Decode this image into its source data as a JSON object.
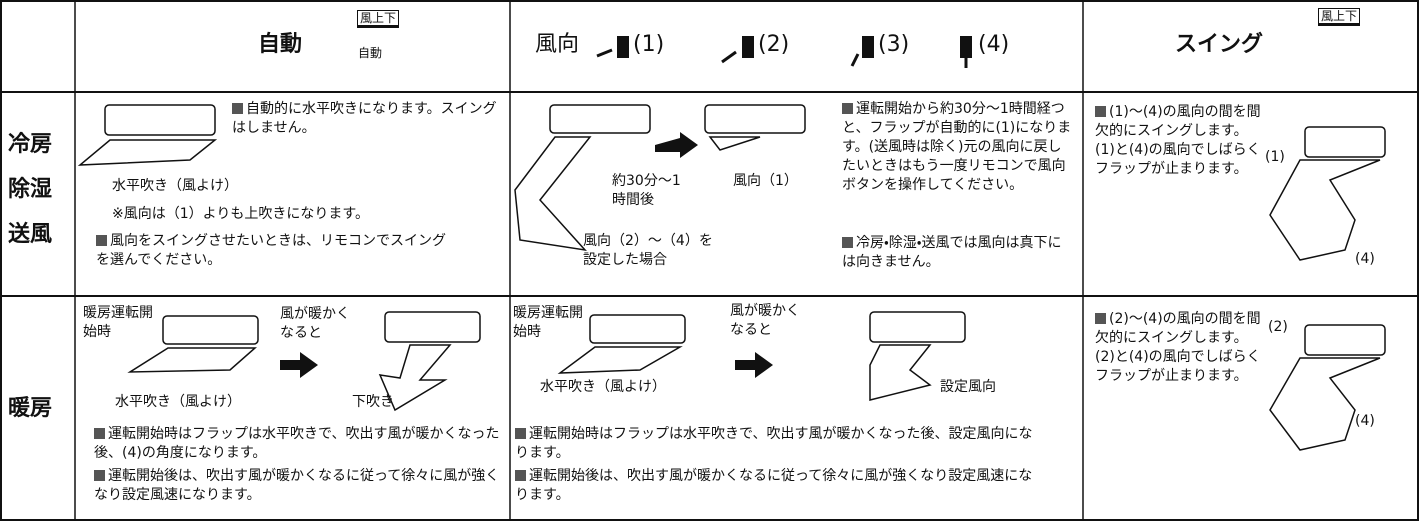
{
  "header": {
    "auto": {
      "title": "自動",
      "icon_label": "風上下",
      "icon_sub": "自動"
    },
    "direction": {
      "title": "風向",
      "positions": [
        "(1)",
        "(2)",
        "(3)",
        "(4)"
      ]
    },
    "swing": {
      "title": "スイング",
      "icon_label": "風上下"
    }
  },
  "rows": [
    {
      "labels": [
        "冷房",
        "除湿",
        "送風"
      ],
      "auto": {
        "notes": [
          "自動的に水平吹きになります。スイングはしません。",
          "風向をスイングさせたいときは、リモコンでスイングを選んでください。"
        ],
        "caption": "水平吹き（風よけ）",
        "remark": "※風向は（1）よりも上吹きになります。"
      },
      "direction": {
        "after": "約30分～1時間後",
        "result": "風向（1）",
        "other": "風向（2）～（4）を設定した場合",
        "notes": [
          "運転開始から約30分～1時間経つと、フラップが自動的に(1)になります。(送風時は除く)元の風向に戻したいときはもう一度リモコンで風向ボタンを操作してください。",
          "冷房・除湿・送風では風向は真下には向きません。"
        ]
      },
      "swing": {
        "note": "(1)～(4)の風向の間を間欠的にスイングします。(1)と(4)の風向でしばらくフラップが止まります。",
        "from": "(1)",
        "to": "(4)"
      }
    },
    {
      "labels": [
        "暖房"
      ],
      "auto": {
        "start": "暖房運転開始時",
        "warm": "風が暖かくなると",
        "caption": "水平吹き（風よけ）",
        "down": "下吹き",
        "notes": [
          "運転開始時はフラップは水平吹きで、吹出す風が暖かくなった後、(4)の角度になります。",
          "運転開始後は、吹出す風が暖かくなるに従って徐々に風が強くなり設定風速になります。"
        ]
      },
      "direction": {
        "start": "暖房運転開始時",
        "warm": "風が暖かくなると",
        "caption": "水平吹き（風よけ）",
        "set": "設定風向",
        "notes": [
          "運転開始時はフラップは水平吹きで、吹出す風が暖かくなった後、設定風向になります。",
          "運転開始後は、吹出す風が暖かくなるに従って徐々に風が強くなり設定風速になります。"
        ]
      },
      "swing": {
        "note": "(2)～(4)の風向の間を間欠的にスイングします。(2)と(4)の風向でしばらくフラップが止まります。",
        "from": "(2)",
        "to": "(4)"
      }
    }
  ]
}
